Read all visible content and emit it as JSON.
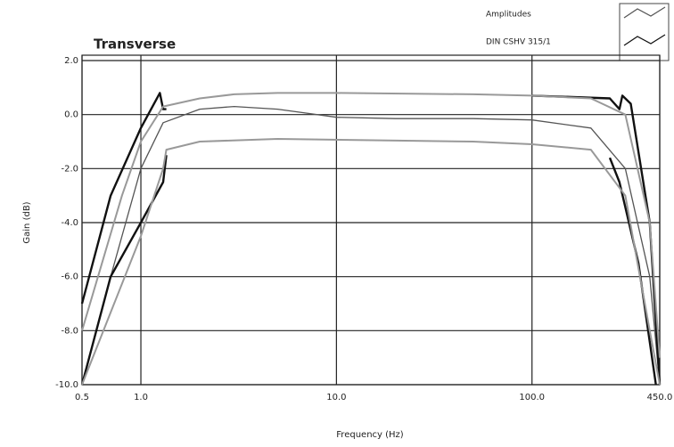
{
  "chart_data": {
    "type": "line",
    "title": "Transverse",
    "x_label": "Frequency (Hz)",
    "y_label": "Gain (dB)",
    "log_x": true,
    "grid": true,
    "xlim": [
      0.5,
      450
    ],
    "ylim": [
      -10,
      2
    ],
    "xticks": [
      {
        "value": 0.5,
        "label": "0.5"
      },
      {
        "value": 1,
        "label": "1.0"
      },
      {
        "value": 10,
        "label": "10.0"
      },
      {
        "value": 100,
        "label": "100.0"
      },
      {
        "value": 450,
        "label": "450.0"
      }
    ],
    "yticks": [
      {
        "value": 2,
        "label": "2.0"
      },
      {
        "value": 0,
        "label": "0.0"
      },
      {
        "value": -2,
        "label": "-2.0"
      },
      {
        "value": -4,
        "label": "-4.0"
      },
      {
        "value": -6,
        "label": "-6.0"
      },
      {
        "value": -8,
        "label": "-8.0"
      },
      {
        "value": -10,
        "label": "-10.0"
      }
    ],
    "series": [
      {
        "name": "Amplitudes",
        "color": "#555555",
        "width": 1.3,
        "x": [
          0.5,
          0.7,
          1.0,
          1.3,
          2,
          3,
          5,
          10,
          20,
          50,
          100,
          200,
          300,
          400,
          450
        ],
        "values": [
          -10,
          -6,
          -2,
          -0.3,
          0.2,
          0.3,
          0.2,
          -0.1,
          -0.15,
          -0.15,
          -0.2,
          -0.5,
          -2,
          -6,
          -10
        ]
      },
      {
        "name": "DIN CSHV 315/1",
        "color": "#111111",
        "width": 2.4,
        "x": [
          0.5,
          0.7,
          1.0,
          1.25,
          1.3,
          1.35,
          10,
          100,
          250,
          280,
          290,
          320,
          400,
          450
        ],
        "values": [
          -7,
          -3,
          -0.5,
          0.8,
          0.2,
          0.2,
          null,
          0.7,
          0.6,
          0.2,
          0.7,
          0.4,
          -4,
          -10
        ]
      },
      {
        "color": "#111111",
        "width": 2.4,
        "x": [
          0.5,
          0.7,
          1.0,
          1.3,
          1.35,
          10,
          250,
          280,
          350,
          430
        ],
        "values": [
          -10,
          -6,
          -4,
          -2.5,
          -1.5,
          null,
          -1.6,
          -2.5,
          -5.5,
          -10
        ]
      },
      {
        "color": "#999999",
        "width": 2,
        "x": [
          0.5,
          0.8,
          1.0,
          1.3,
          2,
          3,
          5,
          10,
          50,
          100,
          200,
          300,
          400,
          450
        ],
        "values": [
          -8,
          -3,
          -1,
          0.3,
          0.6,
          0.75,
          0.8,
          0.8,
          0.75,
          0.7,
          0.6,
          0,
          -4,
          -9
        ]
      },
      {
        "color": "#999999",
        "width": 2,
        "x": [
          0.5,
          1.0,
          1.3,
          1.35,
          2,
          5,
          50,
          100,
          200,
          300,
          400,
          450
        ],
        "values": [
          -10,
          -4.5,
          -2,
          -1.3,
          -1.0,
          -0.9,
          -1.0,
          -1.1,
          -1.3,
          -3,
          -8,
          -10
        ]
      }
    ]
  }
}
